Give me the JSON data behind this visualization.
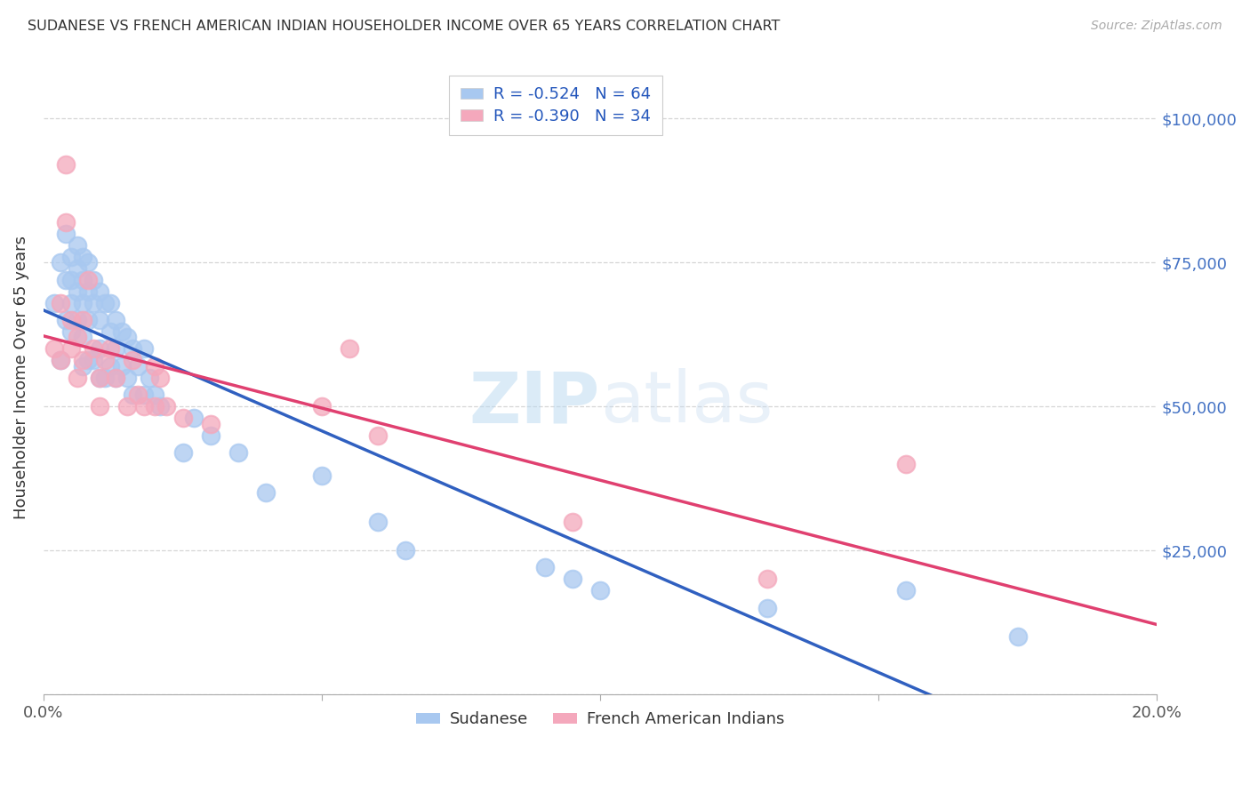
{
  "title": "SUDANESE VS FRENCH AMERICAN INDIAN HOUSEHOLDER INCOME OVER 65 YEARS CORRELATION CHART",
  "source": "Source: ZipAtlas.com",
  "ylabel": "Householder Income Over 65 years",
  "xlim": [
    0.0,
    0.2
  ],
  "ylim": [
    0,
    110000
  ],
  "sudanese_color": "#A8C8F0",
  "french_color": "#F4A8BC",
  "sudanese_line_color": "#3060C0",
  "french_line_color": "#E04070",
  "sudanese_R": -0.524,
  "sudanese_N": 64,
  "french_R": -0.39,
  "french_N": 34,
  "sudanese_scatter_x": [
    0.002,
    0.003,
    0.003,
    0.004,
    0.004,
    0.004,
    0.005,
    0.005,
    0.005,
    0.005,
    0.006,
    0.006,
    0.006,
    0.006,
    0.007,
    0.007,
    0.007,
    0.007,
    0.007,
    0.008,
    0.008,
    0.008,
    0.008,
    0.009,
    0.009,
    0.009,
    0.01,
    0.01,
    0.01,
    0.01,
    0.011,
    0.011,
    0.012,
    0.012,
    0.012,
    0.013,
    0.013,
    0.013,
    0.014,
    0.014,
    0.015,
    0.015,
    0.016,
    0.016,
    0.017,
    0.018,
    0.018,
    0.019,
    0.02,
    0.021,
    0.025,
    0.027,
    0.03,
    0.035,
    0.04,
    0.05,
    0.06,
    0.065,
    0.09,
    0.095,
    0.1,
    0.13,
    0.155,
    0.175
  ],
  "sudanese_scatter_y": [
    68000,
    75000,
    58000,
    80000,
    72000,
    65000,
    76000,
    72000,
    68000,
    63000,
    78000,
    74000,
    70000,
    65000,
    76000,
    72000,
    68000,
    62000,
    57000,
    75000,
    70000,
    65000,
    58000,
    72000,
    68000,
    58000,
    70000,
    65000,
    60000,
    55000,
    68000,
    55000,
    68000,
    63000,
    57000,
    65000,
    60000,
    55000,
    63000,
    57000,
    62000,
    55000,
    60000,
    52000,
    57000,
    60000,
    52000,
    55000,
    52000,
    50000,
    42000,
    48000,
    45000,
    42000,
    35000,
    38000,
    30000,
    25000,
    22000,
    20000,
    18000,
    15000,
    18000,
    10000
  ],
  "french_scatter_x": [
    0.002,
    0.003,
    0.003,
    0.004,
    0.004,
    0.005,
    0.005,
    0.006,
    0.006,
    0.007,
    0.007,
    0.008,
    0.009,
    0.01,
    0.01,
    0.011,
    0.012,
    0.013,
    0.015,
    0.016,
    0.017,
    0.018,
    0.02,
    0.02,
    0.021,
    0.022,
    0.025,
    0.03,
    0.05,
    0.055,
    0.06,
    0.095,
    0.13,
    0.155
  ],
  "french_scatter_y": [
    60000,
    68000,
    58000,
    92000,
    82000,
    65000,
    60000,
    62000,
    55000,
    65000,
    58000,
    72000,
    60000,
    55000,
    50000,
    58000,
    60000,
    55000,
    50000,
    58000,
    52000,
    50000,
    57000,
    50000,
    55000,
    50000,
    48000,
    47000,
    50000,
    60000,
    45000,
    30000,
    20000,
    40000
  ]
}
